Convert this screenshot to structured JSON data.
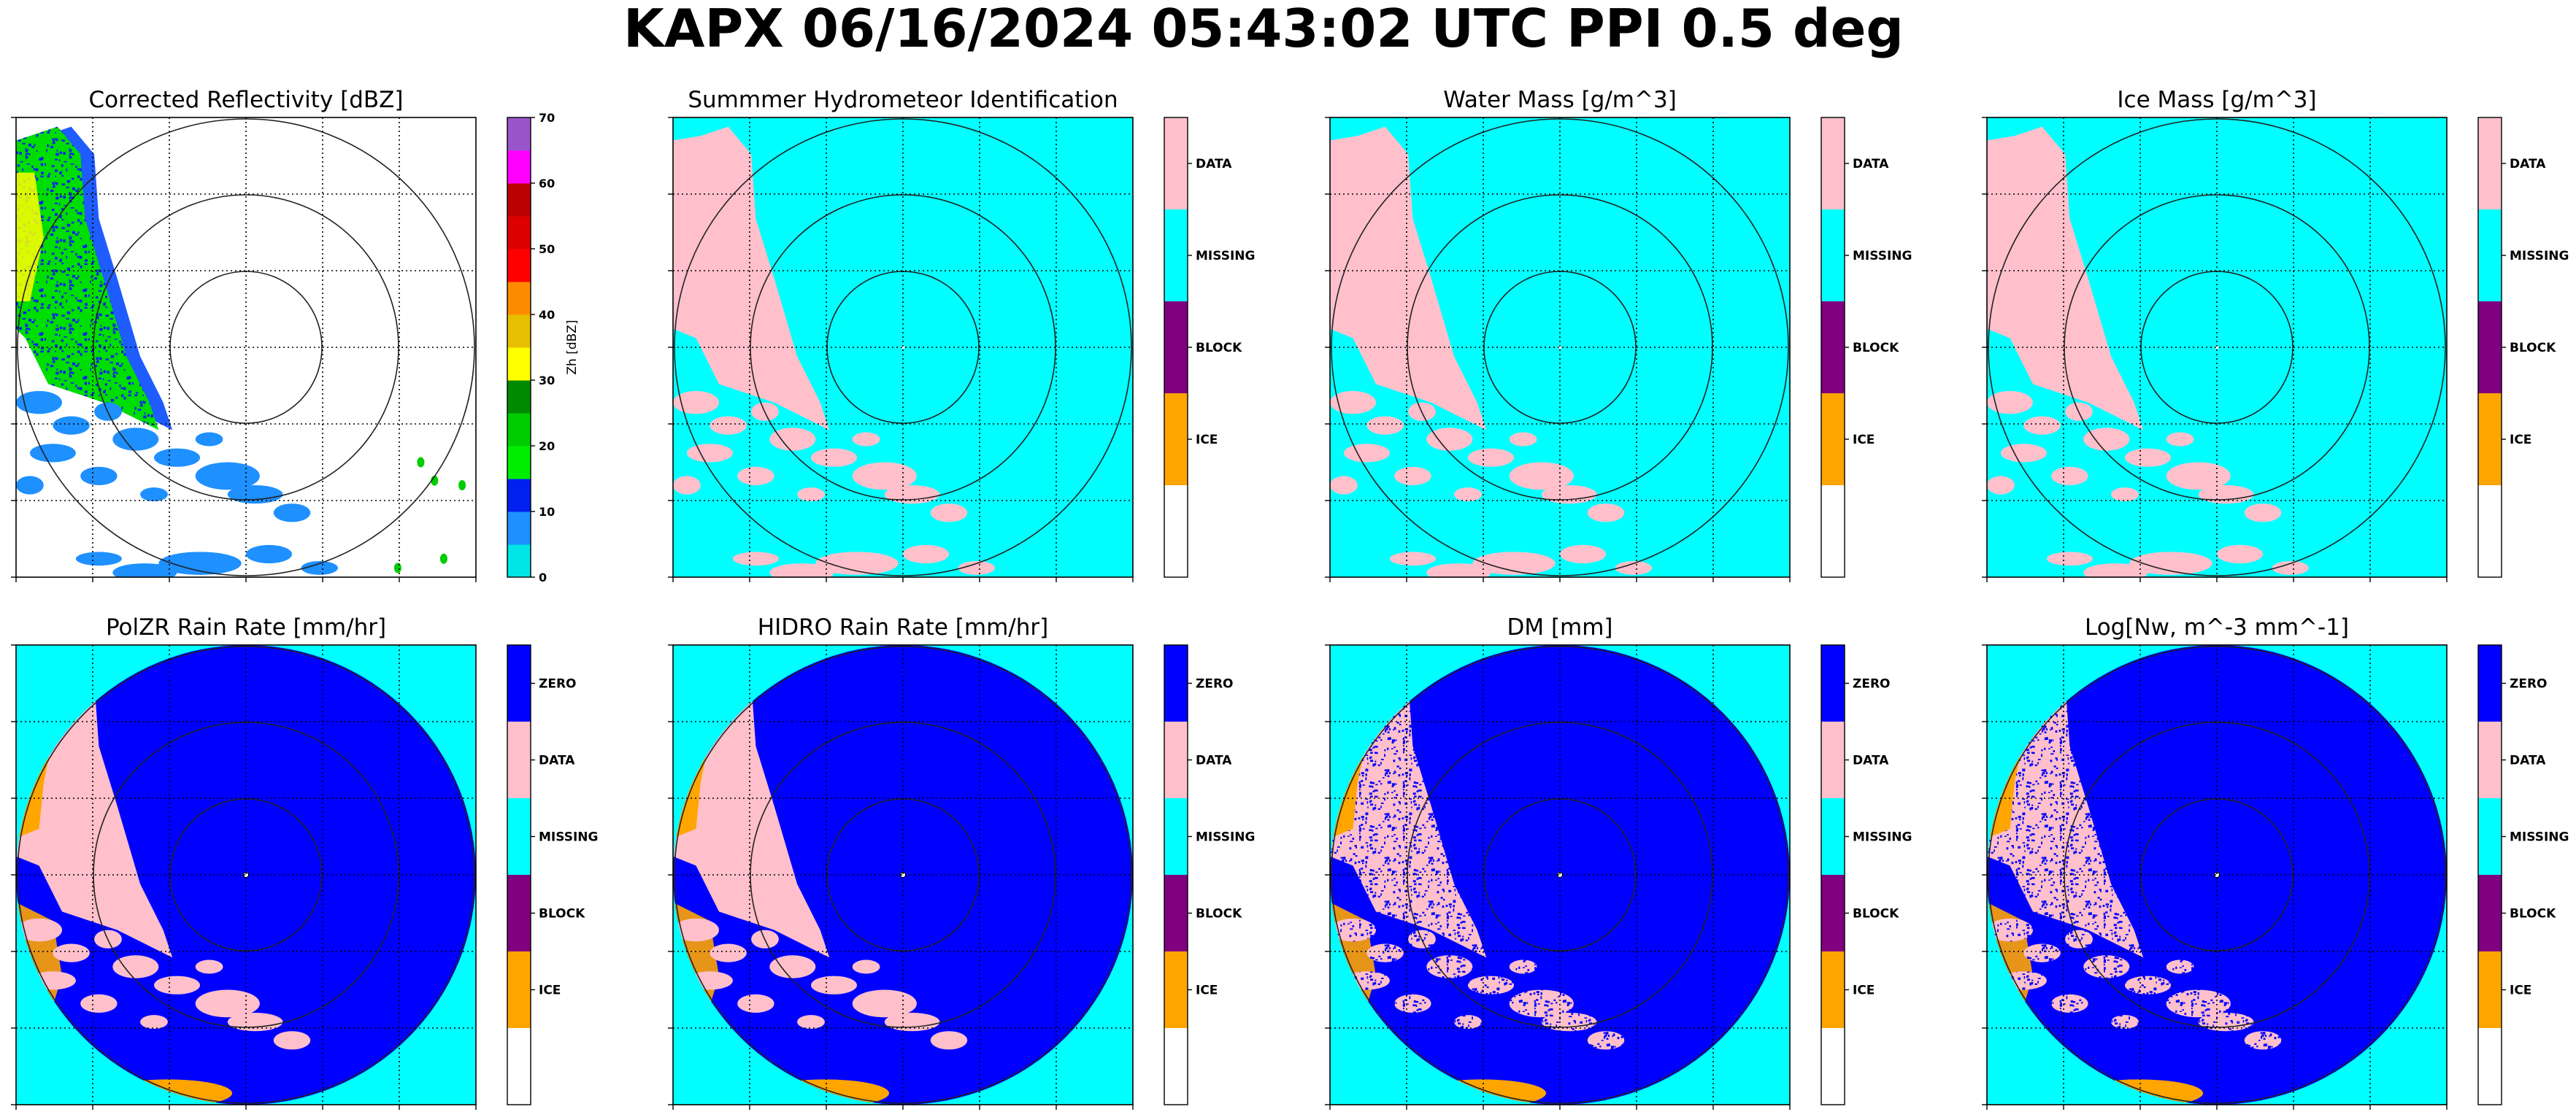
{
  "figure": {
    "title": "KAPX 06/16/2024 05:43:02 UTC PPI 0.5 deg"
  },
  "colors": {
    "missing": "#00ffff",
    "data": "#ffc0cb",
    "zero": "#0000ff",
    "block": "#800080",
    "ice": "#ffa500",
    "none": "#ffffff",
    "ring": "#222222",
    "grid": "#000000"
  },
  "chart_data": [
    {
      "type": "heatmap",
      "title": "Corrected Reflectivity [dBZ]",
      "field": "reflectivity",
      "colorbar": {
        "kind": "continuous",
        "label": "Zh [dBZ]",
        "ticks": [
          "0",
          "10",
          "20",
          "30",
          "40",
          "50",
          "60",
          "70"
        ],
        "range": [
          0,
          70
        ],
        "colors": [
          "#00e5e5",
          "#1e90ff",
          "#0020f0",
          "#00ee00",
          "#00cc00",
          "#008a00",
          "#ffff00",
          "#e6c000",
          "#ff8c00",
          "#ff0000",
          "#dd0000",
          "#bb0000",
          "#ff00ff",
          "#9955cc"
        ]
      }
    },
    {
      "type": "heatmap",
      "title": "Summmer Hydrometeor Identification",
      "field": "classification",
      "colorbar": {
        "kind": "categorical",
        "categories": [
          "DATA",
          "MISSING",
          "BLOCK",
          "ICE",
          ""
        ],
        "colors": [
          "#ffc0cb",
          "#00ffff",
          "#800080",
          "#ffa500",
          "#ffffff"
        ]
      }
    },
    {
      "type": "heatmap",
      "title": "Water Mass [g/m^3]",
      "field": "classification",
      "colorbar": {
        "kind": "categorical",
        "categories": [
          "DATA",
          "MISSING",
          "BLOCK",
          "ICE",
          ""
        ],
        "colors": [
          "#ffc0cb",
          "#00ffff",
          "#800080",
          "#ffa500",
          "#ffffff"
        ]
      }
    },
    {
      "type": "heatmap",
      "title": "Ice Mass [g/m^3]",
      "field": "classification",
      "colorbar": {
        "kind": "categorical",
        "categories": [
          "DATA",
          "MISSING",
          "BLOCK",
          "ICE",
          ""
        ],
        "colors": [
          "#ffc0cb",
          "#00ffff",
          "#800080",
          "#ffa500",
          "#ffffff"
        ]
      }
    },
    {
      "type": "heatmap",
      "title": "PolZR Rain Rate [mm/hr]",
      "field": "rain",
      "colorbar": {
        "kind": "categorical",
        "categories": [
          "ZERO",
          "DATA",
          "MISSING",
          "BLOCK",
          "ICE",
          ""
        ],
        "colors": [
          "#0000ff",
          "#ffc0cb",
          "#00ffff",
          "#800080",
          "#ffa500",
          "#ffffff"
        ]
      }
    },
    {
      "type": "heatmap",
      "title": "HIDRO Rain Rate [mm/hr]",
      "field": "rain",
      "colorbar": {
        "kind": "categorical",
        "categories": [
          "ZERO",
          "DATA",
          "MISSING",
          "BLOCK",
          "ICE",
          ""
        ],
        "colors": [
          "#0000ff",
          "#ffc0cb",
          "#00ffff",
          "#800080",
          "#ffa500",
          "#ffffff"
        ]
      }
    },
    {
      "type": "heatmap",
      "title": "DM [mm]",
      "field": "rain-speckled",
      "colorbar": {
        "kind": "categorical",
        "categories": [
          "ZERO",
          "DATA",
          "MISSING",
          "BLOCK",
          "ICE",
          ""
        ],
        "colors": [
          "#0000ff",
          "#ffc0cb",
          "#00ffff",
          "#800080",
          "#ffa500",
          "#ffffff"
        ]
      }
    },
    {
      "type": "heatmap",
      "title": "Log[Nw, m^-3 mm^-1]",
      "field": "rain-speckled",
      "colorbar": {
        "kind": "categorical",
        "categories": [
          "ZERO",
          "DATA",
          "MISSING",
          "BLOCK",
          "ICE",
          ""
        ],
        "colors": [
          "#0000ff",
          "#ffc0cb",
          "#00ffff",
          "#800080",
          "#ffa500",
          "#ffffff"
        ]
      }
    }
  ]
}
